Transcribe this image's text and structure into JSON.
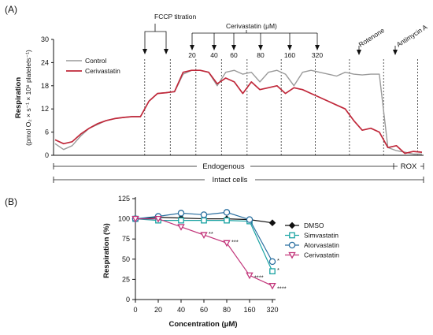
{
  "panels": {
    "a_label": "(A)",
    "b_label": "(B)"
  },
  "colors": {
    "control": "#9a9a9a",
    "cerivastatin_a": "#c0283a",
    "dmso": "#111111",
    "simvastatin": "#1aa3a3",
    "atorvastatin": "#2a6fa0",
    "cerivastatin_b": "#c2357a",
    "axis": "#111111"
  },
  "panel_a": {
    "y_label_1": "Respiration",
    "y_label_2": "(pmol O₂ × s⁻¹ × 10⁸ platelets⁻¹)",
    "legend": [
      "Control",
      "Cerivastatin"
    ],
    "annotations": {
      "fccp": "FCCP titration",
      "cerivastatin": "Cerivastatin (μM)",
      "rotenone": "Rotenone",
      "antimycin": "Antimycin A"
    },
    "conc_labels": [
      "20",
      "40",
      "60",
      "80",
      "160",
      "320"
    ],
    "phases": {
      "endogenous": "Endogenous",
      "rox": "ROX",
      "intact": "Intact cells"
    }
  },
  "chart_data": [
    {
      "type": "line",
      "panel": "A",
      "ylabel": "Respiration (pmol O₂ × s⁻¹ × 10⁸ platelets⁻¹)",
      "ylim": [
        0,
        30
      ],
      "yticks": [
        0,
        6,
        12,
        18,
        24,
        30
      ],
      "x_axis_shown": false,
      "grid": false,
      "legend_position": "top-left",
      "x": [
        0,
        1,
        2,
        3,
        4,
        5,
        6,
        7,
        8,
        9,
        10,
        11,
        12,
        13,
        14,
        15,
        16,
        17,
        18,
        19,
        20,
        21,
        22,
        23,
        24,
        25,
        26,
        27,
        28,
        29,
        30,
        31,
        32,
        33,
        34,
        35,
        36,
        37,
        38,
        39,
        40,
        41,
        42,
        43
      ],
      "series": [
        {
          "name": "Control",
          "values": [
            3,
            1.5,
            2.5,
            5,
            7,
            8,
            9,
            9.5,
            9.8,
            10,
            10,
            14,
            16,
            16.2,
            16.4,
            21,
            22,
            22,
            21.5,
            18,
            21.5,
            22,
            21,
            21.5,
            19,
            21.5,
            22,
            21,
            18,
            21.5,
            22,
            21.5,
            21,
            20.5,
            21.5,
            21,
            20.8,
            21,
            21,
            2,
            1.2,
            0.8,
            0.3,
            0.3
          ]
        },
        {
          "name": "Cerivastatin",
          "values": [
            4,
            3,
            3.5,
            5.5,
            7,
            8.2,
            9,
            9.5,
            9.8,
            10,
            10,
            14,
            16,
            16.2,
            16.5,
            21.5,
            22,
            22,
            21.5,
            18.5,
            20,
            19,
            16,
            19,
            17,
            17.5,
            18,
            16,
            17.5,
            17,
            16,
            15,
            14,
            13,
            12,
            9,
            6.5,
            7,
            6,
            2,
            2.5,
            0.5,
            1,
            0.8
          ]
        }
      ],
      "events": [
        "FCCP titration",
        "Cerivastatin 20 μM",
        "40 μM",
        "60 μM",
        "80 μM",
        "160 μM",
        "320 μM",
        "Rotenone",
        "Antimycin A"
      ]
    },
    {
      "type": "line",
      "panel": "B",
      "xlabel": "Concentration (μM)",
      "ylabel": "Respiration (%)",
      "x": [
        0,
        20,
        40,
        60,
        80,
        160,
        320
      ],
      "x_tick_labels": [
        "0",
        "20",
        "40",
        "60",
        "80",
        "160",
        "320"
      ],
      "ylim": [
        0,
        125
      ],
      "yticks": [
        0,
        25,
        50,
        75,
        100,
        125
      ],
      "grid": false,
      "legend_position": "right",
      "series": [
        {
          "name": "DMSO",
          "marker": "diamond",
          "values": [
            100,
            102,
            101,
            100,
            100,
            99,
            95
          ]
        },
        {
          "name": "Simvastatin",
          "marker": "square",
          "values": [
            100,
            98,
            98,
            98,
            98,
            97,
            35
          ]
        },
        {
          "name": "Atorvastatin",
          "marker": "circle",
          "values": [
            100,
            103,
            107,
            105,
            108,
            99,
            47
          ]
        },
        {
          "name": "Cerivastatin",
          "marker": "triangle-down",
          "values": [
            100,
            100,
            90,
            80,
            70,
            30,
            17
          ]
        }
      ],
      "significance": [
        {
          "series": "Cerivastatin",
          "x": 60,
          "label": "**"
        },
        {
          "series": "Cerivastatin",
          "x": 80,
          "label": "***"
        },
        {
          "series": "Cerivastatin",
          "x": 160,
          "label": "****"
        },
        {
          "series": "Cerivastatin",
          "x": 320,
          "label": "****"
        },
        {
          "series": "Atorvastatin",
          "x": 320,
          "label": "*"
        },
        {
          "series": "Simvastatin",
          "x": 320,
          "label": "*"
        }
      ]
    }
  ]
}
